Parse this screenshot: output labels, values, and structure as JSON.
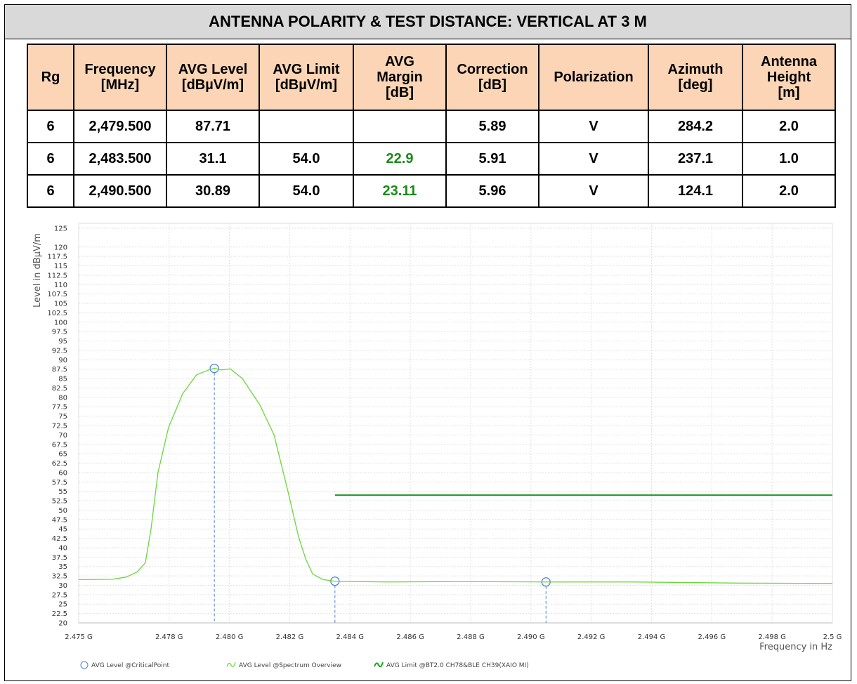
{
  "header": {
    "title": "ANTENNA POLARITY & TEST DISTANCE: VERTICAL AT 3 M"
  },
  "table": {
    "columns": [
      "Rg",
      "Frequency\n[MHz]",
      "AVG Level\n[dBµV/m]",
      "AVG Limit\n[dBµV/m]",
      "AVG\nMargin\n[dB]",
      "Correction\n[dB]",
      "Polarization",
      "Azimuth\n[deg]",
      "Antenna\nHeight\n[m]"
    ],
    "rows": [
      [
        "6",
        "2,479.500",
        "87.71",
        null,
        null,
        "5.89",
        "V",
        "284.2",
        "2.0"
      ],
      [
        "6",
        "2,483.500",
        "31.1",
        "54.0",
        "22.9",
        "5.91",
        "V",
        "237.1",
        "1.0"
      ],
      [
        "6",
        "2,490.500",
        "30.89",
        "54.0",
        "23.11",
        "5.96",
        "V",
        "124.1",
        "2.0"
      ]
    ]
  },
  "chart_data": {
    "type": "line",
    "ylabel": "Level in dBµV/m",
    "xlabel": "Frequency in Hz",
    "xlim": [
      2.475,
      2.5
    ],
    "ylim": [
      20,
      125
    ],
    "grid": true,
    "xticks": [
      {
        "value": 2.475,
        "label": "2.475 G"
      },
      {
        "value": 2.478,
        "label": "2.478 G"
      },
      {
        "value": 2.48,
        "label": "2.480 G"
      },
      {
        "value": 2.482,
        "label": "2.482 G"
      },
      {
        "value": 2.484,
        "label": "2.484 G"
      },
      {
        "value": 2.486,
        "label": "2.486 G"
      },
      {
        "value": 2.488,
        "label": "2.488 G"
      },
      {
        "value": 2.49,
        "label": "2.490 G"
      },
      {
        "value": 2.492,
        "label": "2.492 G"
      },
      {
        "value": 2.494,
        "label": "2.494 G"
      },
      {
        "value": 2.496,
        "label": "2.496 G"
      },
      {
        "value": 2.498,
        "label": "2.498 G"
      },
      {
        "value": 2.5,
        "label": "2.5 G"
      }
    ],
    "yticks": [
      20,
      22.5,
      25,
      27.5,
      30,
      32.5,
      35,
      37.5,
      40,
      42.5,
      45,
      47.5,
      50,
      52.5,
      55,
      57.5,
      60,
      62.5,
      65,
      67.5,
      70,
      72.5,
      75,
      77.5,
      80,
      82.5,
      85,
      87.5,
      90,
      92.5,
      95,
      97.5,
      100,
      102.5,
      105,
      107.5,
      110,
      112.5,
      115,
      117.5,
      120,
      125
    ],
    "series": [
      {
        "name": "AVG Level @CriticalPoint",
        "color": "#4a7fd4",
        "kind": "points",
        "x": [
          2.4795,
          2.4835,
          2.4905
        ],
        "values": [
          87.71,
          31.1,
          30.89
        ]
      },
      {
        "name": "AVG Level @Spectrum Overview",
        "color": "#6ad83a",
        "kind": "line",
        "x": [
          2.475,
          2.47612,
          2.47658,
          2.47693,
          2.47721,
          2.4774,
          2.47763,
          2.47798,
          2.47845,
          2.47891,
          2.47938,
          2.4795,
          2.47973,
          2.48003,
          2.48043,
          2.48101,
          2.48148,
          2.48194,
          2.48229,
          2.48253,
          2.48276,
          2.48311,
          2.4835,
          2.4852,
          2.48753,
          2.4905,
          2.49336,
          2.49685,
          2.5
        ],
        "values": [
          31.5,
          31.6,
          32.2,
          33.5,
          36,
          45,
          60,
          72,
          81,
          86,
          87.5,
          87.71,
          87.3,
          87.6,
          85,
          78,
          70,
          55,
          43,
          37,
          33,
          31.5,
          31.1,
          30.9,
          31,
          30.89,
          30.9,
          30.6,
          30.5
        ]
      },
      {
        "name": "AVG Limit @BT2.0 CH78&BLE CH39(XAIO MI)",
        "color": "#22a022",
        "kind": "line",
        "x": [
          2.4835,
          2.5
        ],
        "values": [
          54,
          54
        ]
      }
    ]
  }
}
